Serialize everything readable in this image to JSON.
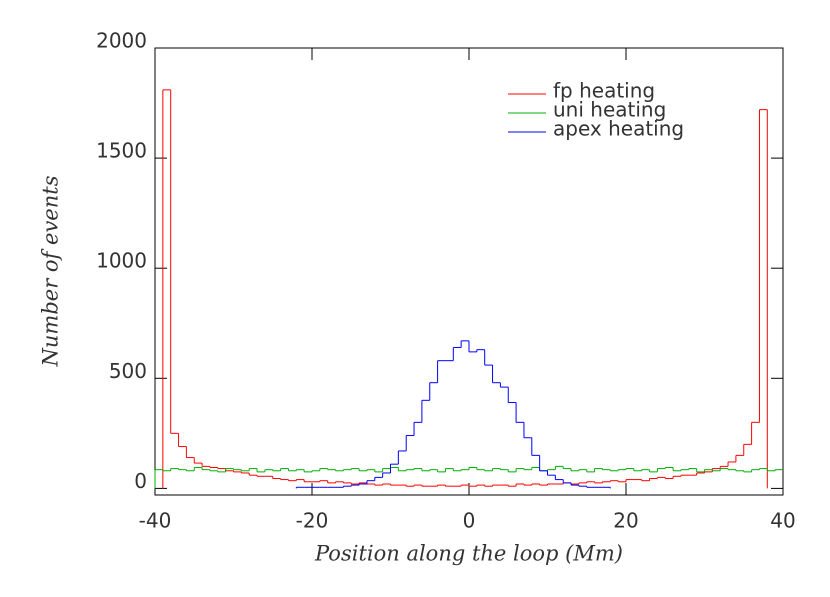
{
  "chart_data": {
    "type": "histogram",
    "x_label": "Position along the loop (Mm)",
    "y_label": "Number of events",
    "bins": [
      -40,
      -39,
      -38,
      -37,
      -36,
      -35,
      -34,
      -33,
      -32,
      -31,
      -30,
      -29,
      -28,
      -27,
      -26,
      -25,
      -24,
      -23,
      -22,
      -21,
      -20,
      -19,
      -18,
      -17,
      -16,
      -15,
      -14,
      -13,
      -12,
      -11,
      -10,
      -9,
      -8,
      -7,
      -6,
      -5,
      -4,
      -3,
      -2,
      -1,
      0,
      1,
      2,
      3,
      4,
      5,
      6,
      7,
      8,
      9,
      10,
      11,
      12,
      13,
      14,
      15,
      16,
      17,
      18,
      19,
      20,
      21,
      22,
      23,
      24,
      25,
      26,
      27,
      28,
      29,
      30,
      31,
      32,
      33,
      34,
      35,
      36,
      37,
      38,
      39,
      40
    ],
    "series": [
      {
        "name": "fp heating",
        "color": "#ff0000",
        "values": [
          null,
          1810,
          250,
          190,
          140,
          115,
          100,
          95,
          90,
          80,
          75,
          70,
          60,
          55,
          55,
          45,
          40,
          35,
          40,
          30,
          30,
          35,
          25,
          30,
          25,
          20,
          25,
          20,
          15,
          20,
          15,
          15,
          10,
          15,
          10,
          10,
          15,
          10,
          10,
          15,
          10,
          15,
          10,
          15,
          15,
          10,
          20,
          15,
          20,
          15,
          20,
          20,
          25,
          20,
          25,
          30,
          25,
          30,
          35,
          30,
          40,
          40,
          35,
          45,
          50,
          45,
          55,
          60,
          60,
          70,
          75,
          90,
          100,
          120,
          150,
          200,
          300,
          1720,
          null,
          null
        ]
      },
      {
        "name": "uni heating",
        "color": "#00b000",
        "values": [
          85,
          80,
          90,
          85,
          80,
          95,
          85,
          80,
          75,
          90,
          85,
          80,
          90,
          75,
          85,
          80,
          90,
          80,
          85,
          75,
          80,
          90,
          85,
          80,
          85,
          90,
          80,
          85,
          75,
          90,
          95,
          80,
          85,
          90,
          80,
          85,
          75,
          90,
          80,
          85,
          95,
          85,
          80,
          90,
          85,
          75,
          90,
          85,
          95,
          80,
          85,
          100,
          90,
          80,
          85,
          75,
          90,
          85,
          80,
          85,
          90,
          80,
          85,
          75,
          90,
          95,
          80,
          85,
          90,
          75,
          85,
          80,
          90,
          85,
          80,
          75,
          85,
          90,
          80,
          85
        ]
      },
      {
        "name": "apex heating",
        "color": "#0000ff",
        "values": [
          null,
          null,
          null,
          null,
          null,
          null,
          null,
          null,
          null,
          null,
          null,
          null,
          null,
          null,
          null,
          null,
          null,
          null,
          5,
          5,
          5,
          5,
          5,
          5,
          10,
          15,
          20,
          35,
          50,
          70,
          110,
          170,
          240,
          300,
          400,
          480,
          580,
          580,
          640,
          670,
          620,
          630,
          560,
          480,
          460,
          390,
          300,
          230,
          150,
          80,
          60,
          40,
          25,
          15,
          10,
          5,
          5,
          5,
          null,
          null,
          null,
          null,
          null,
          null,
          null,
          null,
          null,
          null,
          null,
          null,
          null,
          null,
          null,
          null,
          null,
          null,
          null,
          null,
          null,
          null
        ]
      }
    ],
    "xlim": [
      -40,
      40
    ],
    "xticks": [
      -40,
      -20,
      0,
      20,
      40
    ],
    "ylim": [
      -30,
      2000
    ],
    "yticks": [
      0,
      500,
      1000,
      1500,
      2000
    ],
    "legend": "upper right"
  }
}
